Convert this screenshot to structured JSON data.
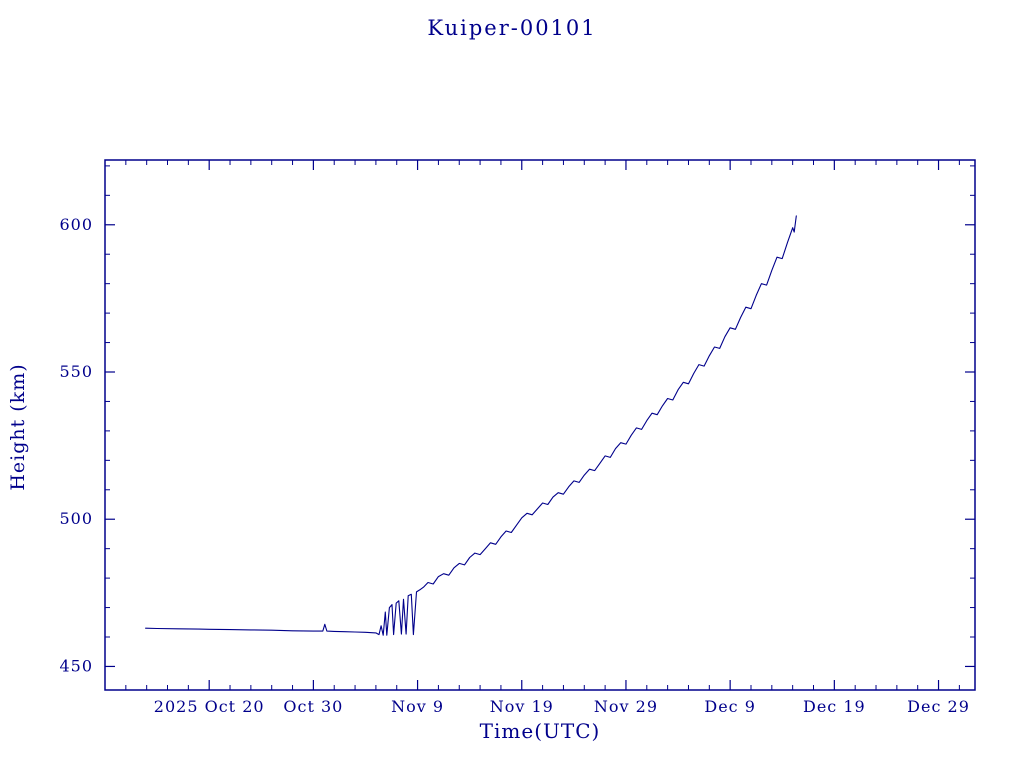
{
  "page": {
    "background": "#ffffff",
    "accent_color": "#00008b"
  },
  "chart_data": {
    "type": "line",
    "title": "Kuiper-00101",
    "xlabel": "Time(UTC)",
    "ylabel": "Height (km)",
    "line_color": "#00008b",
    "grid": false,
    "legend": "none",
    "x_axis": {
      "unit": "days since 2025 Oct 10 00:00 UTC",
      "lim": [
        0,
        83.5
      ],
      "major_ticks": [
        {
          "x": 10,
          "label": "2025 Oct 20"
        },
        {
          "x": 20,
          "label": "Oct 30"
        },
        {
          "x": 30,
          "label": "Nov 9"
        },
        {
          "x": 40,
          "label": "Nov 19"
        },
        {
          "x": 50,
          "label": "Nov 29"
        },
        {
          "x": 60,
          "label": "Dec 9"
        },
        {
          "x": 70,
          "label": "Dec 19"
        },
        {
          "x": 80,
          "label": "Dec 29"
        }
      ],
      "minor_tick_step": 2
    },
    "y_axis": {
      "unit": "km",
      "lim": [
        442,
        622
      ],
      "major_ticks": [
        {
          "y": 450,
          "label": "450"
        },
        {
          "y": 500,
          "label": "500"
        },
        {
          "y": 550,
          "label": "550"
        },
        {
          "y": 600,
          "label": "600"
        }
      ],
      "minor_tick_step": 10
    },
    "series": [
      {
        "name": "height",
        "points": [
          [
            3.9,
            463.0
          ],
          [
            5,
            462.9
          ],
          [
            7,
            462.8
          ],
          [
            9,
            462.7
          ],
          [
            10,
            462.6
          ],
          [
            12,
            462.5
          ],
          [
            14,
            462.4
          ],
          [
            16,
            462.3
          ],
          [
            18,
            462.1
          ],
          [
            20,
            462.0
          ],
          [
            20.9,
            462.0
          ],
          [
            21.1,
            464.3
          ],
          [
            21.3,
            462.0
          ],
          [
            22,
            461.9
          ],
          [
            23,
            461.8
          ],
          [
            24,
            461.7
          ],
          [
            25,
            461.6
          ],
          [
            26,
            461.4
          ],
          [
            26.3,
            460.8
          ],
          [
            26.5,
            463.8
          ],
          [
            26.7,
            460.6
          ],
          [
            26.9,
            468.5
          ],
          [
            27.05,
            460.6
          ],
          [
            27.3,
            470.0
          ],
          [
            27.55,
            471.0
          ],
          [
            27.7,
            460.8
          ],
          [
            27.95,
            471.5
          ],
          [
            28.2,
            472.3
          ],
          [
            28.45,
            461.0
          ],
          [
            28.65,
            472.8
          ],
          [
            28.9,
            461.0
          ],
          [
            29.1,
            474.0
          ],
          [
            29.4,
            474.5
          ],
          [
            29.6,
            460.8
          ],
          [
            29.9,
            475.3
          ],
          [
            30.2,
            476.0
          ],
          [
            30.6,
            477.0
          ],
          [
            31,
            478.5
          ],
          [
            31.5,
            478.0
          ],
          [
            32,
            480.5
          ],
          [
            32.5,
            481.5
          ],
          [
            33,
            481.0
          ],
          [
            33.5,
            483.5
          ],
          [
            34,
            485.0
          ],
          [
            34.5,
            484.5
          ],
          [
            35,
            487.0
          ],
          [
            35.5,
            488.5
          ],
          [
            36,
            488.0
          ],
          [
            36.5,
            490.0
          ],
          [
            37,
            492.0
          ],
          [
            37.5,
            491.5
          ],
          [
            38,
            494.0
          ],
          [
            38.5,
            496.0
          ],
          [
            39,
            495.5
          ],
          [
            39.5,
            498.0
          ],
          [
            40,
            500.5
          ],
          [
            40.5,
            502.0
          ],
          [
            41,
            501.5
          ],
          [
            41.5,
            503.5
          ],
          [
            42,
            505.5
          ],
          [
            42.5,
            505.0
          ],
          [
            43,
            507.5
          ],
          [
            43.5,
            509.0
          ],
          [
            44,
            508.5
          ],
          [
            44.5,
            511.0
          ],
          [
            45,
            513.0
          ],
          [
            45.5,
            512.5
          ],
          [
            46,
            515.0
          ],
          [
            46.5,
            517.0
          ],
          [
            47,
            516.5
          ],
          [
            47.5,
            519.0
          ],
          [
            48,
            521.5
          ],
          [
            48.5,
            521.0
          ],
          [
            49,
            524.0
          ],
          [
            49.5,
            526.0
          ],
          [
            50,
            525.5
          ],
          [
            50.5,
            528.5
          ],
          [
            51,
            531.0
          ],
          [
            51.5,
            530.5
          ],
          [
            52,
            533.5
          ],
          [
            52.5,
            536.0
          ],
          [
            53,
            535.5
          ],
          [
            53.5,
            538.5
          ],
          [
            54,
            541.0
          ],
          [
            54.5,
            540.5
          ],
          [
            55,
            544.0
          ],
          [
            55.5,
            546.5
          ],
          [
            56,
            546.0
          ],
          [
            56.5,
            549.5
          ],
          [
            57,
            552.5
          ],
          [
            57.5,
            552.0
          ],
          [
            58,
            555.5
          ],
          [
            58.5,
            558.5
          ],
          [
            59,
            558.0
          ],
          [
            59.5,
            562.0
          ],
          [
            60,
            565.0
          ],
          [
            60.5,
            564.5
          ],
          [
            61,
            568.5
          ],
          [
            61.5,
            572.0
          ],
          [
            62,
            571.5
          ],
          [
            62.5,
            576.0
          ],
          [
            63,
            580.0
          ],
          [
            63.5,
            579.5
          ],
          [
            64,
            584.5
          ],
          [
            64.5,
            589.0
          ],
          [
            65,
            588.5
          ],
          [
            65.5,
            594.0
          ],
          [
            66,
            599.0
          ],
          [
            66.15,
            597.5
          ],
          [
            66.35,
            603.0
          ]
        ]
      }
    ]
  }
}
